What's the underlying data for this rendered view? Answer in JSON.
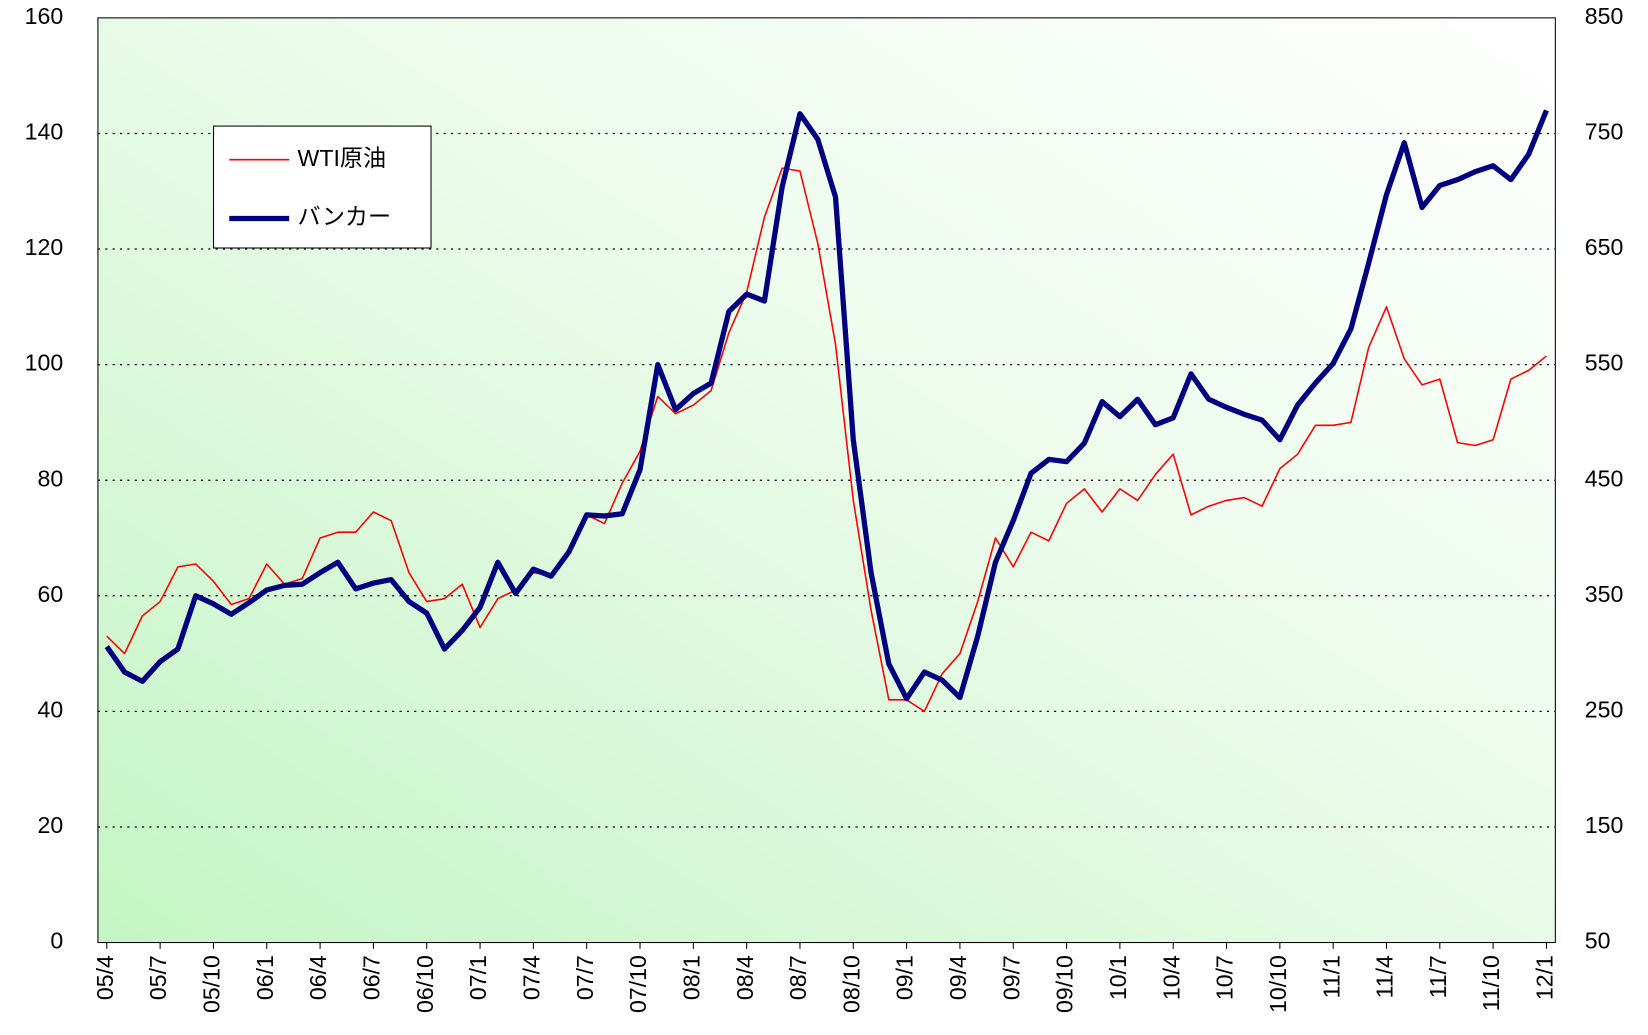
{
  "chart_data": {
    "type": "line",
    "categories": [
      "05/4",
      null,
      null,
      "05/7",
      null,
      null,
      "05/10",
      null,
      null,
      "06/1",
      null,
      null,
      "06/4",
      null,
      null,
      "06/7",
      null,
      null,
      "06/10",
      null,
      null,
      "07/1",
      null,
      null,
      "07/4",
      null,
      null,
      "07/7",
      null,
      null,
      "07/10",
      null,
      null,
      "08/1",
      null,
      null,
      "08/4",
      null,
      null,
      "08/7",
      null,
      null,
      "08/10",
      null,
      null,
      "09/1",
      null,
      null,
      "09/4",
      null,
      null,
      "09/7",
      null,
      null,
      "09/10",
      null,
      null,
      "10/1",
      null,
      null,
      "10/4",
      null,
      null,
      "10/7",
      null,
      null,
      "10/10",
      null,
      null,
      "11/1",
      null,
      null,
      "11/4",
      null,
      null,
      "11/7",
      null,
      null,
      "11/10",
      null,
      null,
      "12/1"
    ],
    "series": [
      {
        "name": "WTI原油",
        "color": "#ff0000",
        "axis": "y",
        "values": [
          53,
          50,
          56.5,
          59,
          65,
          65.5,
          62.5,
          58.5,
          59.5,
          65.5,
          62,
          63,
          70,
          71,
          71,
          74.5,
          73,
          64,
          59,
          59.5,
          62,
          54.5,
          59.5,
          61,
          64,
          63.5,
          67.5,
          74,
          72.5,
          79.5,
          85,
          94.5,
          91.5,
          93,
          95.5,
          105.5,
          112.5,
          125.5,
          134,
          133.5,
          121,
          103.5,
          76.5,
          57.5,
          42,
          42,
          40,
          46.5,
          50,
          59,
          70,
          65,
          71,
          69.5,
          76,
          78.5,
          74.5,
          78.5,
          76.5,
          81,
          84.5,
          74,
          75.5,
          76.5,
          77,
          75.5,
          82,
          84.5,
          89.5,
          89.5,
          90,
          103,
          110,
          101,
          96.5,
          97.5,
          86.5,
          86,
          87,
          97.5,
          99,
          101.5
        ]
      },
      {
        "name": "バンカー",
        "color": "#000080",
        "axis": "y2",
        "values": [
          306,
          284,
          276,
          293,
          304,
          350,
          343,
          334,
          344,
          355,
          359,
          360,
          370,
          379,
          356,
          361,
          364,
          345,
          335,
          304,
          320,
          340,
          379,
          352,
          373,
          367,
          388,
          420,
          419,
          421,
          459,
          550,
          511,
          525,
          534,
          596,
          611,
          605,
          704,
          767,
          745,
          695,
          485,
          370,
          291,
          261,
          284,
          277,
          262,
          315,
          379,
          415,
          456,
          468,
          466,
          482,
          518,
          505,
          520,
          498,
          504,
          542,
          520,
          513,
          507,
          502,
          485,
          515,
          534,
          551,
          581,
          638,
          697,
          742,
          686,
          705,
          710,
          717,
          722,
          710,
          732,
          770
        ]
      }
    ],
    "ylim": [
      0,
      160
    ],
    "yticks": [
      0,
      20,
      40,
      60,
      80,
      100,
      120,
      140,
      160
    ],
    "y2lim": [
      50,
      850
    ],
    "y2ticks": [
      50,
      150,
      250,
      350,
      450,
      550,
      650,
      750,
      850
    ],
    "grid": true
  }
}
